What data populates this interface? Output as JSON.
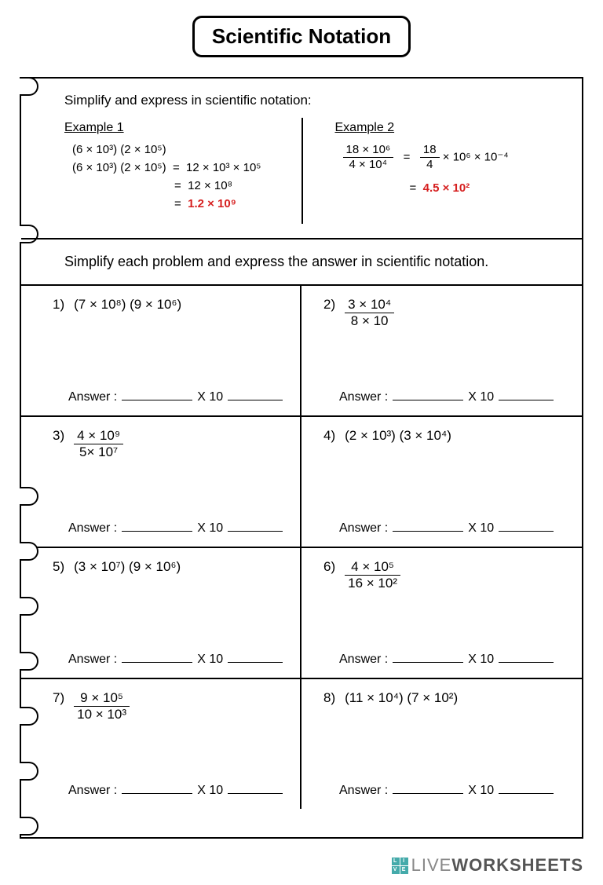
{
  "title": "Scientific Notation",
  "instruction_examples": "Simplify and express in scientific notation:",
  "example1": {
    "label": "Example 1",
    "line1": "(6 × 10³) (2 × 10⁵)",
    "line2_left": "(6 × 10³) (2 × 10⁵)",
    "line2_right": "12 × 10³ × 10⁵",
    "line3": "12 × 10⁸",
    "line4": "1.2 × 10⁹"
  },
  "example2": {
    "label": "Example 2",
    "frac_num": "18 × 10⁶",
    "frac_den": "4 × 10⁴",
    "mid_num": "18",
    "mid_den": "4",
    "mid_tail": " × 10⁶ × 10⁻⁴",
    "result": "4.5 × 10²"
  },
  "instruction_problems": "Simplify each problem and express the answer in scientific notation.",
  "answer_label": "Answer :",
  "x10_label": "X 10",
  "problems": [
    {
      "n": "1)",
      "type": "mult",
      "a": "(7 × 10⁸)",
      "b": "(9 × 10⁶)"
    },
    {
      "n": "2)",
      "type": "frac",
      "num": "3 × 10⁴",
      "den": "8 × 10"
    },
    {
      "n": "3)",
      "type": "frac",
      "num": "4 × 10⁹",
      "den": "5× 10⁷"
    },
    {
      "n": "4)",
      "type": "mult",
      "a": "(2 × 10³)",
      "b": "(3 × 10⁴)"
    },
    {
      "n": "5)",
      "type": "mult",
      "a": "(3 × 10⁷)",
      "b": "(9 × 10⁶)"
    },
    {
      "n": "6)",
      "type": "frac",
      "num": "4 × 10⁵",
      "den": "16 × 10²"
    },
    {
      "n": "7)",
      "type": "frac",
      "num": "9 × 10⁵",
      "den": "10 × 10³"
    },
    {
      "n": "8)",
      "type": "mult",
      "a": "(11 × 10⁴)",
      "b": "(7 × 10²)"
    }
  ],
  "watermark": {
    "thin": "LIVE",
    "bold": "WORKSHEETS"
  },
  "colors": {
    "accent": "#d62020",
    "border": "#000000",
    "bg": "#ffffff"
  }
}
